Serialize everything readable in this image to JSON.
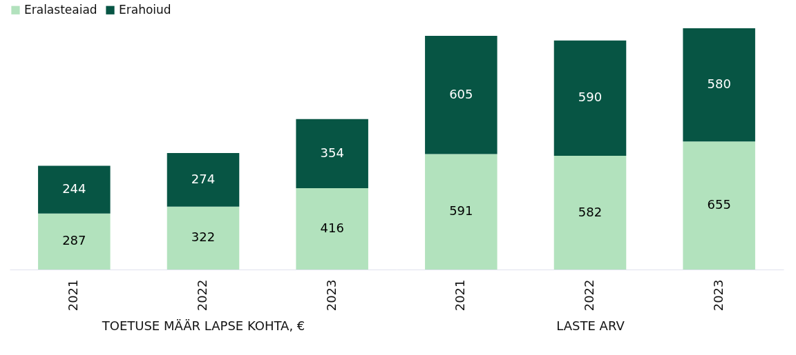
{
  "chart_data": [
    {
      "type": "bar",
      "stacked": true,
      "data_labels": true,
      "legend": "top",
      "xlabel": "TOETUSE MÄÄR LAPSE KOHTA, €",
      "categories": [
        "2021",
        "2022",
        "2023"
      ],
      "series": [
        {
          "name": "Eralasteaiad",
          "color": "#b2e2bd",
          "values": [
            287,
            322,
            416
          ]
        },
        {
          "name": "Erahoiud",
          "color": "#075544",
          "values": [
            244,
            274,
            354
          ]
        }
      ]
    },
    {
      "type": "bar",
      "stacked": true,
      "data_labels": true,
      "legend": "top",
      "xlabel": "LASTE ARV",
      "categories": [
        "2021",
        "2022",
        "2023"
      ],
      "series": [
        {
          "name": "Eralasteaiad",
          "color": "#b2e2bd",
          "values": [
            591,
            582,
            655
          ]
        },
        {
          "name": "Erahoiud",
          "color": "#075544",
          "values": [
            605,
            590,
            580
          ]
        }
      ]
    }
  ]
}
